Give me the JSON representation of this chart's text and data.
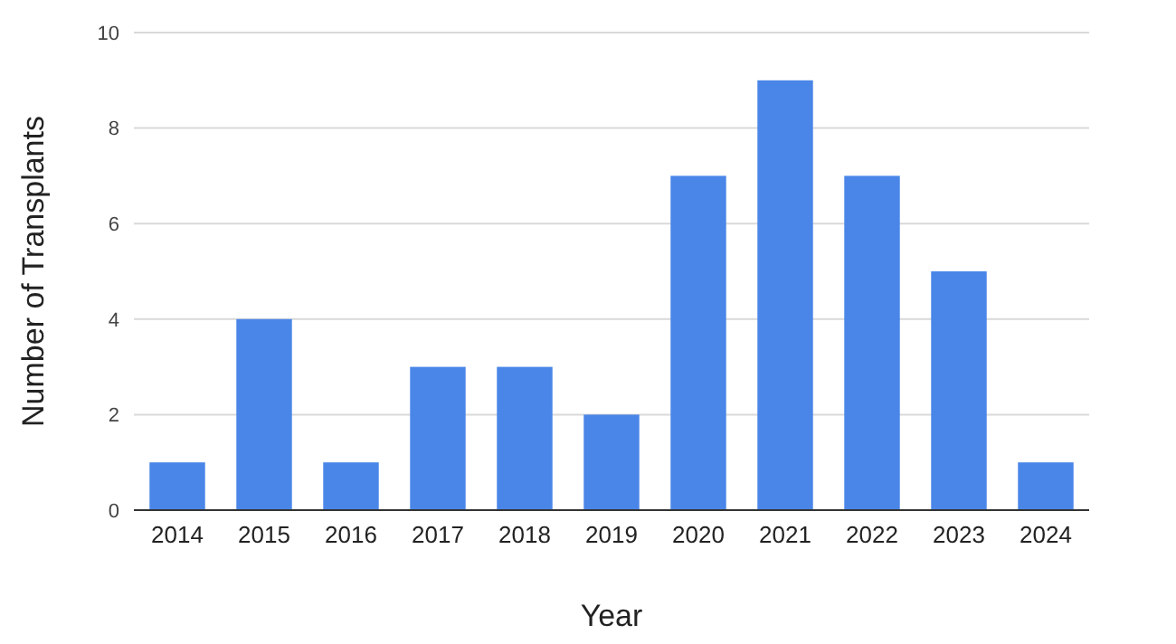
{
  "chart_data": {
    "type": "bar",
    "xlabel": "Year",
    "ylabel": "Number of Transplants",
    "categories": [
      "2014",
      "2015",
      "2016",
      "2017",
      "2018",
      "2019",
      "2020",
      "2021",
      "2022",
      "2023",
      "2024"
    ],
    "values": [
      1,
      4,
      1,
      3,
      3,
      2,
      7,
      9,
      7,
      5,
      1
    ],
    "color": "#4a86e8",
    "ylim": [
      0,
      10
    ],
    "yticks": [
      0,
      2,
      4,
      6,
      8,
      10
    ],
    "grid": "y"
  }
}
